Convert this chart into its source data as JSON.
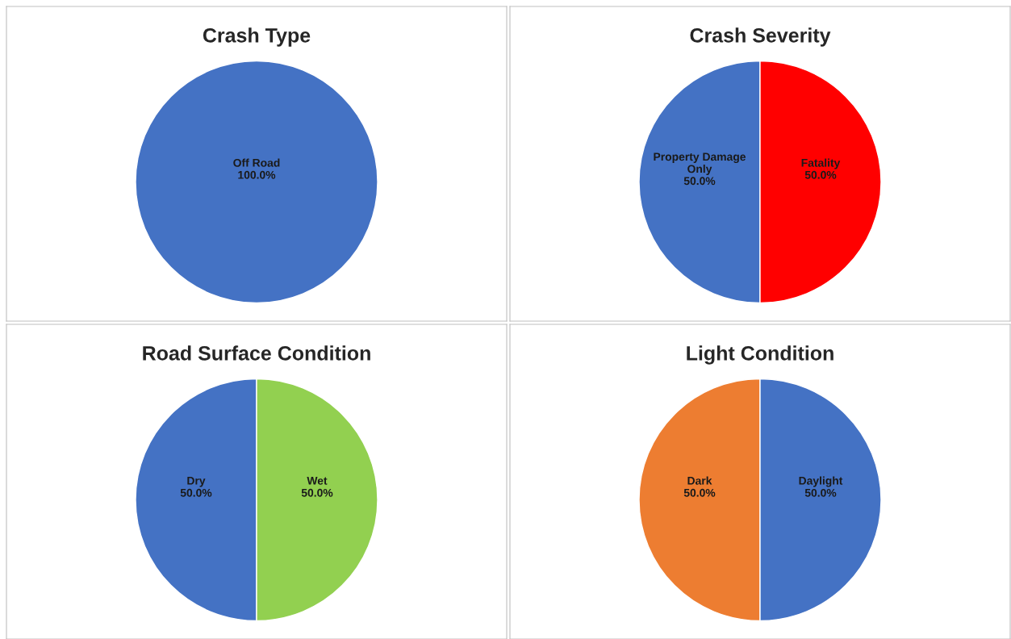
{
  "chart_data": [
    {
      "type": "pie",
      "title": "Crash Type",
      "categories": [
        "Off Road"
      ],
      "values": [
        100
      ],
      "colors": [
        "#4472c4"
      ],
      "value_labels": [
        "100.0%"
      ]
    },
    {
      "type": "pie",
      "title": "Crash Severity",
      "categories": [
        "Property Damage Only",
        "Fatality"
      ],
      "values": [
        50,
        50
      ],
      "colors": [
        "#4472c4",
        "#ff0000"
      ],
      "value_labels": [
        "50.0%",
        "50.0%"
      ]
    },
    {
      "type": "pie",
      "title": "Road Surface Condition",
      "categories": [
        "Dry",
        "Wet"
      ],
      "values": [
        50,
        50
      ],
      "colors": [
        "#4472c4",
        "#92d050"
      ],
      "value_labels": [
        "50.0%",
        "50.0%"
      ]
    },
    {
      "type": "pie",
      "title": "Light Condition",
      "categories": [
        "Dark",
        "Daylight"
      ],
      "values": [
        50,
        50
      ],
      "colors": [
        "#ed7d31",
        "#4472c4"
      ],
      "value_labels": [
        "50.0%",
        "50.0%"
      ]
    }
  ]
}
